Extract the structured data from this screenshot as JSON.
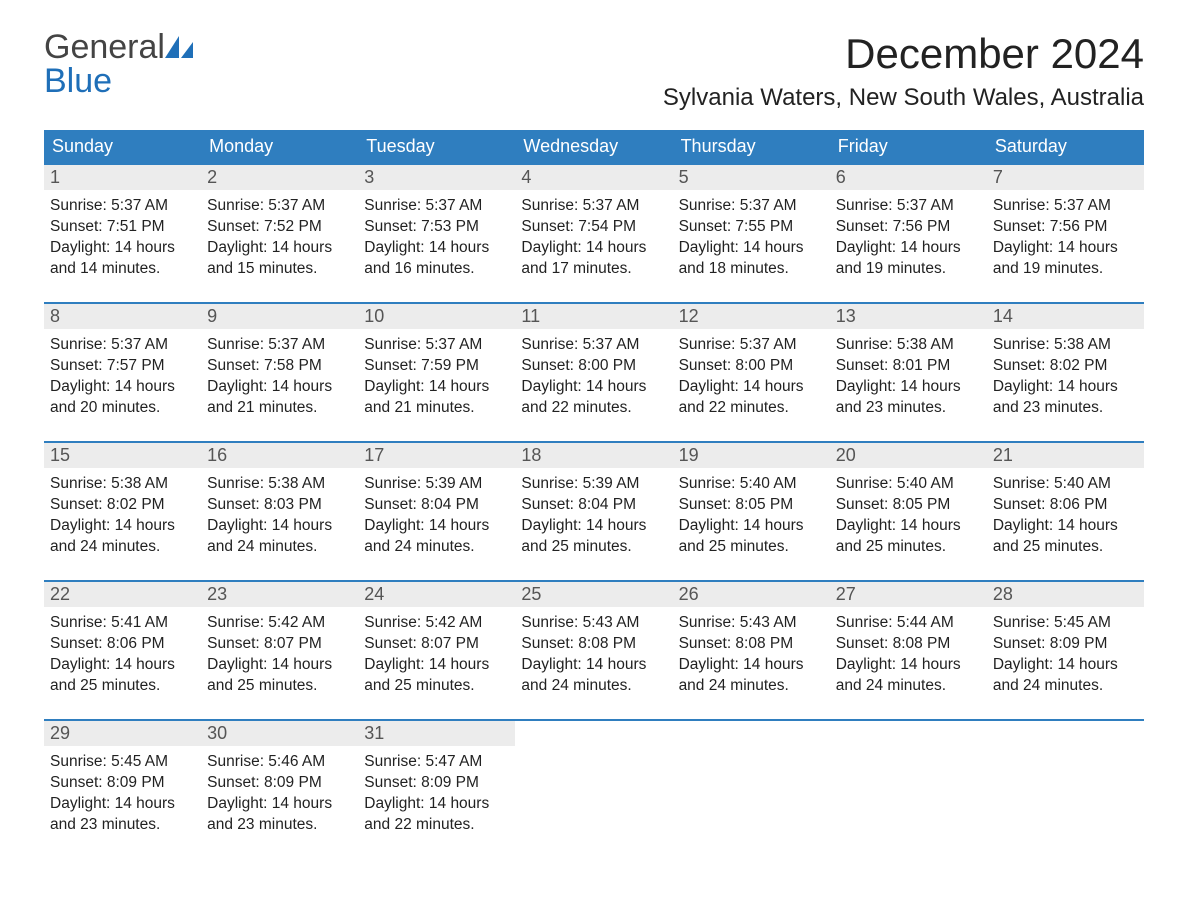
{
  "logo": {
    "part1": "General",
    "part2": "Blue",
    "part1_color": "#444444",
    "part2_color": "#1f6fb8",
    "sail_color": "#1f6fb8"
  },
  "title": {
    "month": "December 2024",
    "location": "Sylvania Waters, New South Wales, Australia"
  },
  "style": {
    "header_bg": "#2f7ebf",
    "header_text": "#ffffff",
    "week_border": "#2f7ebf",
    "date_bg": "#ececec",
    "page_bg": "#ffffff",
    "body_text": "#222222",
    "month_fontsize": 42,
    "loc_fontsize": 24,
    "th_fontsize": 18,
    "cell_fontsize": 15.5
  },
  "dow": [
    "Sunday",
    "Monday",
    "Tuesday",
    "Wednesday",
    "Thursday",
    "Friday",
    "Saturday"
  ],
  "weeks": [
    [
      {
        "n": "1",
        "sr": "Sunrise: 5:37 AM",
        "ss": "Sunset: 7:51 PM",
        "dl": "Daylight: 14 hours and 14 minutes."
      },
      {
        "n": "2",
        "sr": "Sunrise: 5:37 AM",
        "ss": "Sunset: 7:52 PM",
        "dl": "Daylight: 14 hours and 15 minutes."
      },
      {
        "n": "3",
        "sr": "Sunrise: 5:37 AM",
        "ss": "Sunset: 7:53 PM",
        "dl": "Daylight: 14 hours and 16 minutes."
      },
      {
        "n": "4",
        "sr": "Sunrise: 5:37 AM",
        "ss": "Sunset: 7:54 PM",
        "dl": "Daylight: 14 hours and 17 minutes."
      },
      {
        "n": "5",
        "sr": "Sunrise: 5:37 AM",
        "ss": "Sunset: 7:55 PM",
        "dl": "Daylight: 14 hours and 18 minutes."
      },
      {
        "n": "6",
        "sr": "Sunrise: 5:37 AM",
        "ss": "Sunset: 7:56 PM",
        "dl": "Daylight: 14 hours and 19 minutes."
      },
      {
        "n": "7",
        "sr": "Sunrise: 5:37 AM",
        "ss": "Sunset: 7:56 PM",
        "dl": "Daylight: 14 hours and 19 minutes."
      }
    ],
    [
      {
        "n": "8",
        "sr": "Sunrise: 5:37 AM",
        "ss": "Sunset: 7:57 PM",
        "dl": "Daylight: 14 hours and 20 minutes."
      },
      {
        "n": "9",
        "sr": "Sunrise: 5:37 AM",
        "ss": "Sunset: 7:58 PM",
        "dl": "Daylight: 14 hours and 21 minutes."
      },
      {
        "n": "10",
        "sr": "Sunrise: 5:37 AM",
        "ss": "Sunset: 7:59 PM",
        "dl": "Daylight: 14 hours and 21 minutes."
      },
      {
        "n": "11",
        "sr": "Sunrise: 5:37 AM",
        "ss": "Sunset: 8:00 PM",
        "dl": "Daylight: 14 hours and 22 minutes."
      },
      {
        "n": "12",
        "sr": "Sunrise: 5:37 AM",
        "ss": "Sunset: 8:00 PM",
        "dl": "Daylight: 14 hours and 22 minutes."
      },
      {
        "n": "13",
        "sr": "Sunrise: 5:38 AM",
        "ss": "Sunset: 8:01 PM",
        "dl": "Daylight: 14 hours and 23 minutes."
      },
      {
        "n": "14",
        "sr": "Sunrise: 5:38 AM",
        "ss": "Sunset: 8:02 PM",
        "dl": "Daylight: 14 hours and 23 minutes."
      }
    ],
    [
      {
        "n": "15",
        "sr": "Sunrise: 5:38 AM",
        "ss": "Sunset: 8:02 PM",
        "dl": "Daylight: 14 hours and 24 minutes."
      },
      {
        "n": "16",
        "sr": "Sunrise: 5:38 AM",
        "ss": "Sunset: 8:03 PM",
        "dl": "Daylight: 14 hours and 24 minutes."
      },
      {
        "n": "17",
        "sr": "Sunrise: 5:39 AM",
        "ss": "Sunset: 8:04 PM",
        "dl": "Daylight: 14 hours and 24 minutes."
      },
      {
        "n": "18",
        "sr": "Sunrise: 5:39 AM",
        "ss": "Sunset: 8:04 PM",
        "dl": "Daylight: 14 hours and 25 minutes."
      },
      {
        "n": "19",
        "sr": "Sunrise: 5:40 AM",
        "ss": "Sunset: 8:05 PM",
        "dl": "Daylight: 14 hours and 25 minutes."
      },
      {
        "n": "20",
        "sr": "Sunrise: 5:40 AM",
        "ss": "Sunset: 8:05 PM",
        "dl": "Daylight: 14 hours and 25 minutes."
      },
      {
        "n": "21",
        "sr": "Sunrise: 5:40 AM",
        "ss": "Sunset: 8:06 PM",
        "dl": "Daylight: 14 hours and 25 minutes."
      }
    ],
    [
      {
        "n": "22",
        "sr": "Sunrise: 5:41 AM",
        "ss": "Sunset: 8:06 PM",
        "dl": "Daylight: 14 hours and 25 minutes."
      },
      {
        "n": "23",
        "sr": "Sunrise: 5:42 AM",
        "ss": "Sunset: 8:07 PM",
        "dl": "Daylight: 14 hours and 25 minutes."
      },
      {
        "n": "24",
        "sr": "Sunrise: 5:42 AM",
        "ss": "Sunset: 8:07 PM",
        "dl": "Daylight: 14 hours and 25 minutes."
      },
      {
        "n": "25",
        "sr": "Sunrise: 5:43 AM",
        "ss": "Sunset: 8:08 PM",
        "dl": "Daylight: 14 hours and 24 minutes."
      },
      {
        "n": "26",
        "sr": "Sunrise: 5:43 AM",
        "ss": "Sunset: 8:08 PM",
        "dl": "Daylight: 14 hours and 24 minutes."
      },
      {
        "n": "27",
        "sr": "Sunrise: 5:44 AM",
        "ss": "Sunset: 8:08 PM",
        "dl": "Daylight: 14 hours and 24 minutes."
      },
      {
        "n": "28",
        "sr": "Sunrise: 5:45 AM",
        "ss": "Sunset: 8:09 PM",
        "dl": "Daylight: 14 hours and 24 minutes."
      }
    ],
    [
      {
        "n": "29",
        "sr": "Sunrise: 5:45 AM",
        "ss": "Sunset: 8:09 PM",
        "dl": "Daylight: 14 hours and 23 minutes."
      },
      {
        "n": "30",
        "sr": "Sunrise: 5:46 AM",
        "ss": "Sunset: 8:09 PM",
        "dl": "Daylight: 14 hours and 23 minutes."
      },
      {
        "n": "31",
        "sr": "Sunrise: 5:47 AM",
        "ss": "Sunset: 8:09 PM",
        "dl": "Daylight: 14 hours and 22 minutes."
      },
      null,
      null,
      null,
      null
    ]
  ]
}
